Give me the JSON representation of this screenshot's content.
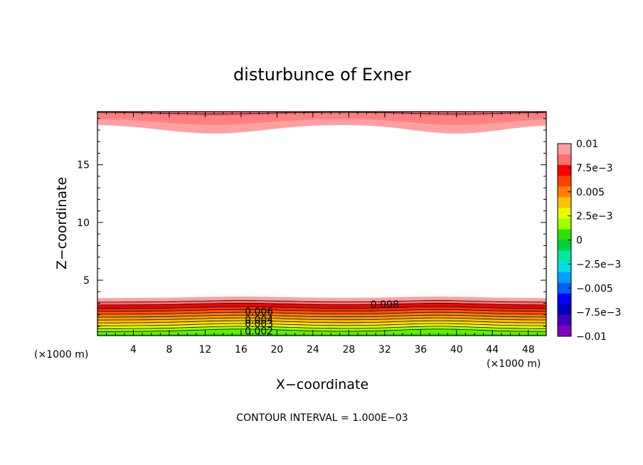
{
  "chart_data": {
    "type": "contour",
    "title": "disturbunce of Exner",
    "xlabel": "X−coordinate",
    "ylabel": "Z−coordinate",
    "x_unit_left": "(×1000 m)",
    "x_unit_right": "(×1000 m)",
    "footer": "CONTOUR INTERVAL = 1.000E−03",
    "xlim": [
      0,
      50
    ],
    "ylim": [
      0.2,
      19.6
    ],
    "xticks": [
      "4",
      "8",
      "12",
      "16",
      "20",
      "24",
      "28",
      "32",
      "36",
      "40",
      "44",
      "48"
    ],
    "xtick_values": [
      4,
      8,
      12,
      16,
      20,
      24,
      28,
      32,
      36,
      40,
      44,
      48
    ],
    "yticks": [
      "5",
      "10",
      "15"
    ],
    "ytick_values": [
      5,
      10,
      15
    ],
    "contour_interval": 0.001,
    "contour_labels": [
      {
        "text": "0.008",
        "x": 32,
        "z": 2.9
      },
      {
        "text": "0.006",
        "x": 18,
        "z": 2.3
      },
      {
        "text": "0.004",
        "x": 18,
        "z": 1.6
      },
      {
        "text": "0.003",
        "x": 18,
        "z": 1.25
      },
      {
        "text": "0.002",
        "x": 18,
        "z": 0.6
      }
    ],
    "colorbar": {
      "labels": [
        "0.01",
        "7.5e−3",
        "0.005",
        "2.5e−3",
        "0",
        "−2.5e−3",
        "−0.005",
        "−7.5e−3",
        "−0.01"
      ],
      "colors_top_to_bottom": [
        "#ffa0a0",
        "#ff6f6f",
        "#ff0000",
        "#ff4000",
        "#ff8000",
        "#ffc000",
        "#e8ff00",
        "#a0ff00",
        "#30e000",
        "#00d040",
        "#00e8a0",
        "#00e0e0",
        "#00a0ff",
        "#0060ff",
        "#0000ff",
        "#0000c0",
        "#4000c0",
        "#8000c0"
      ]
    }
  }
}
